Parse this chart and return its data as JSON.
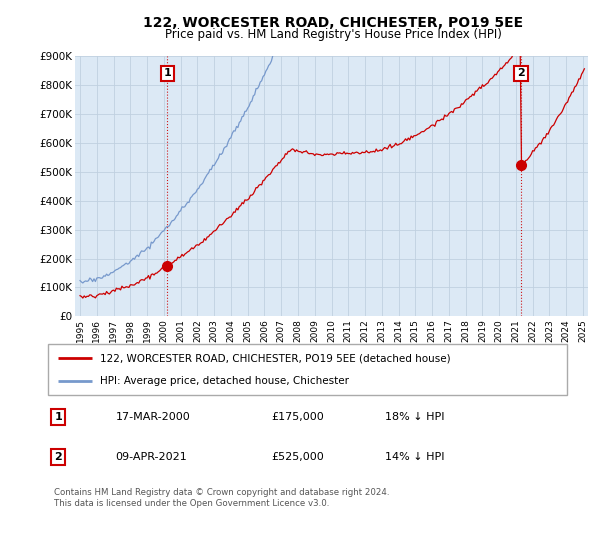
{
  "title": "122, WORCESTER ROAD, CHICHESTER, PO19 5EE",
  "subtitle": "Price paid vs. HM Land Registry's House Price Index (HPI)",
  "red_label": "122, WORCESTER ROAD, CHICHESTER, PO19 5EE (detached house)",
  "blue_label": "HPI: Average price, detached house, Chichester",
  "marker1_label": "1",
  "marker1_date": "17-MAR-2000",
  "marker1_price": "£175,000",
  "marker1_hpi": "18% ↓ HPI",
  "marker1_year": 2000.2,
  "marker1_value": 175000,
  "marker2_label": "2",
  "marker2_date": "09-APR-2021",
  "marker2_price": "£525,000",
  "marker2_hpi": "14% ↓ HPI",
  "marker2_year": 2021.3,
  "marker2_value": 525000,
  "ylim": [
    0,
    900000
  ],
  "xlim": [
    1994.7,
    2025.3
  ],
  "yticks": [
    0,
    100000,
    200000,
    300000,
    400000,
    500000,
    600000,
    700000,
    800000,
    900000
  ],
  "ytick_labels": [
    "£0",
    "£100K",
    "£200K",
    "£300K",
    "£400K",
    "£500K",
    "£600K",
    "£700K",
    "£800K",
    "£900K"
  ],
  "xticks": [
    1995,
    1996,
    1997,
    1998,
    1999,
    2000,
    2001,
    2002,
    2003,
    2004,
    2005,
    2006,
    2007,
    2008,
    2009,
    2010,
    2011,
    2012,
    2013,
    2014,
    2015,
    2016,
    2017,
    2018,
    2019,
    2020,
    2021,
    2022,
    2023,
    2024,
    2025
  ],
  "bg_color": "#dce9f5",
  "red_color": "#cc0000",
  "blue_color": "#7799cc",
  "marker_border_color": "#cc0000",
  "grid_color": "#c0d0e0",
  "footer": "Contains HM Land Registry data © Crown copyright and database right 2024.\nThis data is licensed under the Open Government Licence v3.0."
}
